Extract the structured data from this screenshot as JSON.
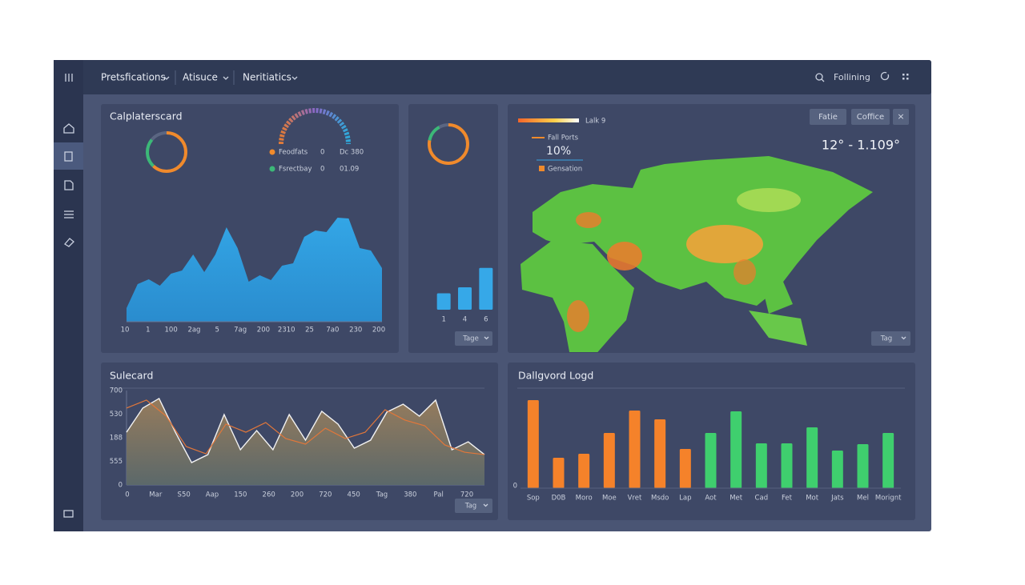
{
  "topbar": {
    "menus": [
      "Pretsfications",
      "Atisuce",
      "Neritiatics"
    ],
    "search": "Follining"
  },
  "card1": {
    "title": "Calplaterscard",
    "donut": {
      "type": "pie",
      "values": [
        62,
        24,
        14
      ],
      "colors": [
        "#f08a2c",
        "#3cb878",
        "#5b6682"
      ]
    },
    "legend": [
      {
        "name": "Feodfats",
        "count": "0",
        "value": "Dc 380",
        "color": "#f08a2c"
      },
      {
        "name": "Fsrectbay",
        "count": "0",
        "value": "01.09",
        "color": "#3cb878"
      }
    ],
    "chart": {
      "type": "area",
      "color": "#2e9bd6",
      "values": [
        17,
        47,
        53,
        45,
        60,
        64,
        84,
        62,
        84,
        118,
        92,
        50,
        58,
        52,
        70,
        73,
        106,
        114,
        112,
        130,
        129,
        92,
        89,
        67
      ],
      "ylim": [
        0,
        140
      ],
      "xlabels": [
        "10",
        "1",
        "100",
        "2ag",
        "5",
        "7ag",
        "200",
        "2310",
        "25",
        "7a0",
        "230",
        "200"
      ]
    }
  },
  "card2": {
    "donut": {
      "type": "pie",
      "values": [
        78,
        14,
        8
      ],
      "colors": [
        "#f08a2c",
        "#3cb878",
        "#5b6682"
      ]
    },
    "chart": {
      "type": "bar",
      "categories": [
        "1",
        "4",
        "6"
      ],
      "values": [
        22,
        30,
        56
      ],
      "color": "#36a8e8",
      "ylim": [
        0,
        60
      ]
    },
    "dropdown": "Tage"
  },
  "map": {
    "scale_label": "Lalk 9",
    "legend": [
      {
        "name": "Fall Ports",
        "color": "#f08a2c"
      },
      {
        "name": "Gensation",
        "color": "#f08a2c"
      }
    ],
    "percent": "10%",
    "buttons": [
      "Fatie",
      "Coffice"
    ],
    "close": "×",
    "range": "12° - 1.109°",
    "dropdown": "Tag"
  },
  "card4": {
    "title": "Sulecard",
    "chart": {
      "type": "line",
      "ylim": [
        0,
        700
      ],
      "ylabels": [
        "700",
        "530",
        "188",
        "555",
        "0"
      ],
      "xlabels": [
        "0",
        "Mar",
        "S50",
        "Aap",
        "150",
        "260",
        "200",
        "720",
        "450",
        "Tag",
        "380",
        "Pal",
        "720"
      ],
      "series": [
        {
          "color": "#f2f2f2",
          "fill": "#8b7660",
          "values": [
            391,
            570,
            641,
            391,
            166,
            225,
            522,
            261,
            403,
            261,
            522,
            332,
            546,
            451,
            273,
            332,
            540,
            599,
            510,
            629,
            261,
            320,
            225
          ]
        },
        {
          "color": "#e2773a",
          "values": [
            570,
            629,
            510,
            285,
            231,
            451,
            391,
            463,
            344,
            303,
            421,
            344,
            391,
            558,
            481,
            439,
            297,
            243,
            225
          ]
        }
      ]
    },
    "dropdown": "Tag"
  },
  "card5": {
    "title": "Dallgvord Logd",
    "chart": {
      "type": "bar",
      "categories": [
        "Sop",
        "D0B",
        "Moro",
        "Moe",
        "Vret",
        "Msdo",
        "Lap",
        "Aot",
        "Met",
        "Cad",
        "Fet",
        "Mot",
        "Jats",
        "Mel",
        "Morignt"
      ],
      "values": [
        110,
        38,
        43,
        69,
        97,
        86,
        49,
        69,
        96,
        56,
        56,
        76,
        47,
        55,
        69
      ],
      "colors": [
        "#f5822a",
        "#f5822a",
        "#f5822a",
        "#f5822a",
        "#f5822a",
        "#f5822a",
        "#f5822a",
        "#3fcf6e",
        "#3fcf6e",
        "#3fcf6e",
        "#3fcf6e",
        "#3fcf6e",
        "#3fcf6e",
        "#3fcf6e",
        "#3fcf6e"
      ],
      "ylim": [
        0,
        120
      ],
      "yticks": [
        0
      ]
    }
  }
}
